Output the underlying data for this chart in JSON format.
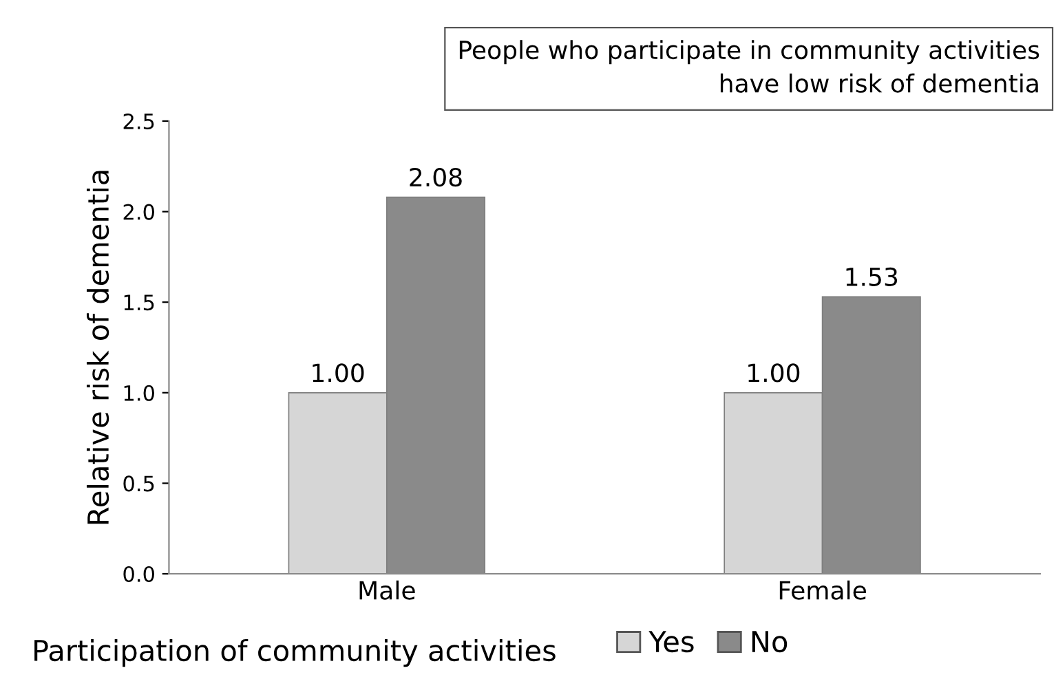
{
  "chart_data": {
    "type": "bar",
    "categories": [
      "Male",
      "Female"
    ],
    "series": [
      {
        "name": "Yes",
        "color": "#d6d6d6",
        "values": [
          1.0,
          1.0
        ],
        "value_labels": [
          "1.00",
          "1.00"
        ]
      },
      {
        "name": "No",
        "color": "#8a8a8a",
        "values": [
          2.08,
          1.53
        ],
        "value_labels": [
          "2.08",
          "1.53"
        ]
      }
    ],
    "ylabel": "Relative risk of dementia",
    "legend_title": "Participation of community activities",
    "legend": "bottom",
    "annotations": [
      "People who participate in community activities\nhave low risk of dementia"
    ],
    "ylim": [
      0,
      2.5
    ],
    "yticks": [
      {
        "value": 0,
        "label": "0.0"
      },
      {
        "value": 0.5,
        "label": "0.5"
      },
      {
        "value": 1.0,
        "label": "1.0"
      },
      {
        "value": 1.5,
        "label": "1.5"
      },
      {
        "value": 2.0,
        "label": "2.0"
      },
      {
        "value": 2.5,
        "label": "2.5"
      }
    ],
    "grid": false
  }
}
